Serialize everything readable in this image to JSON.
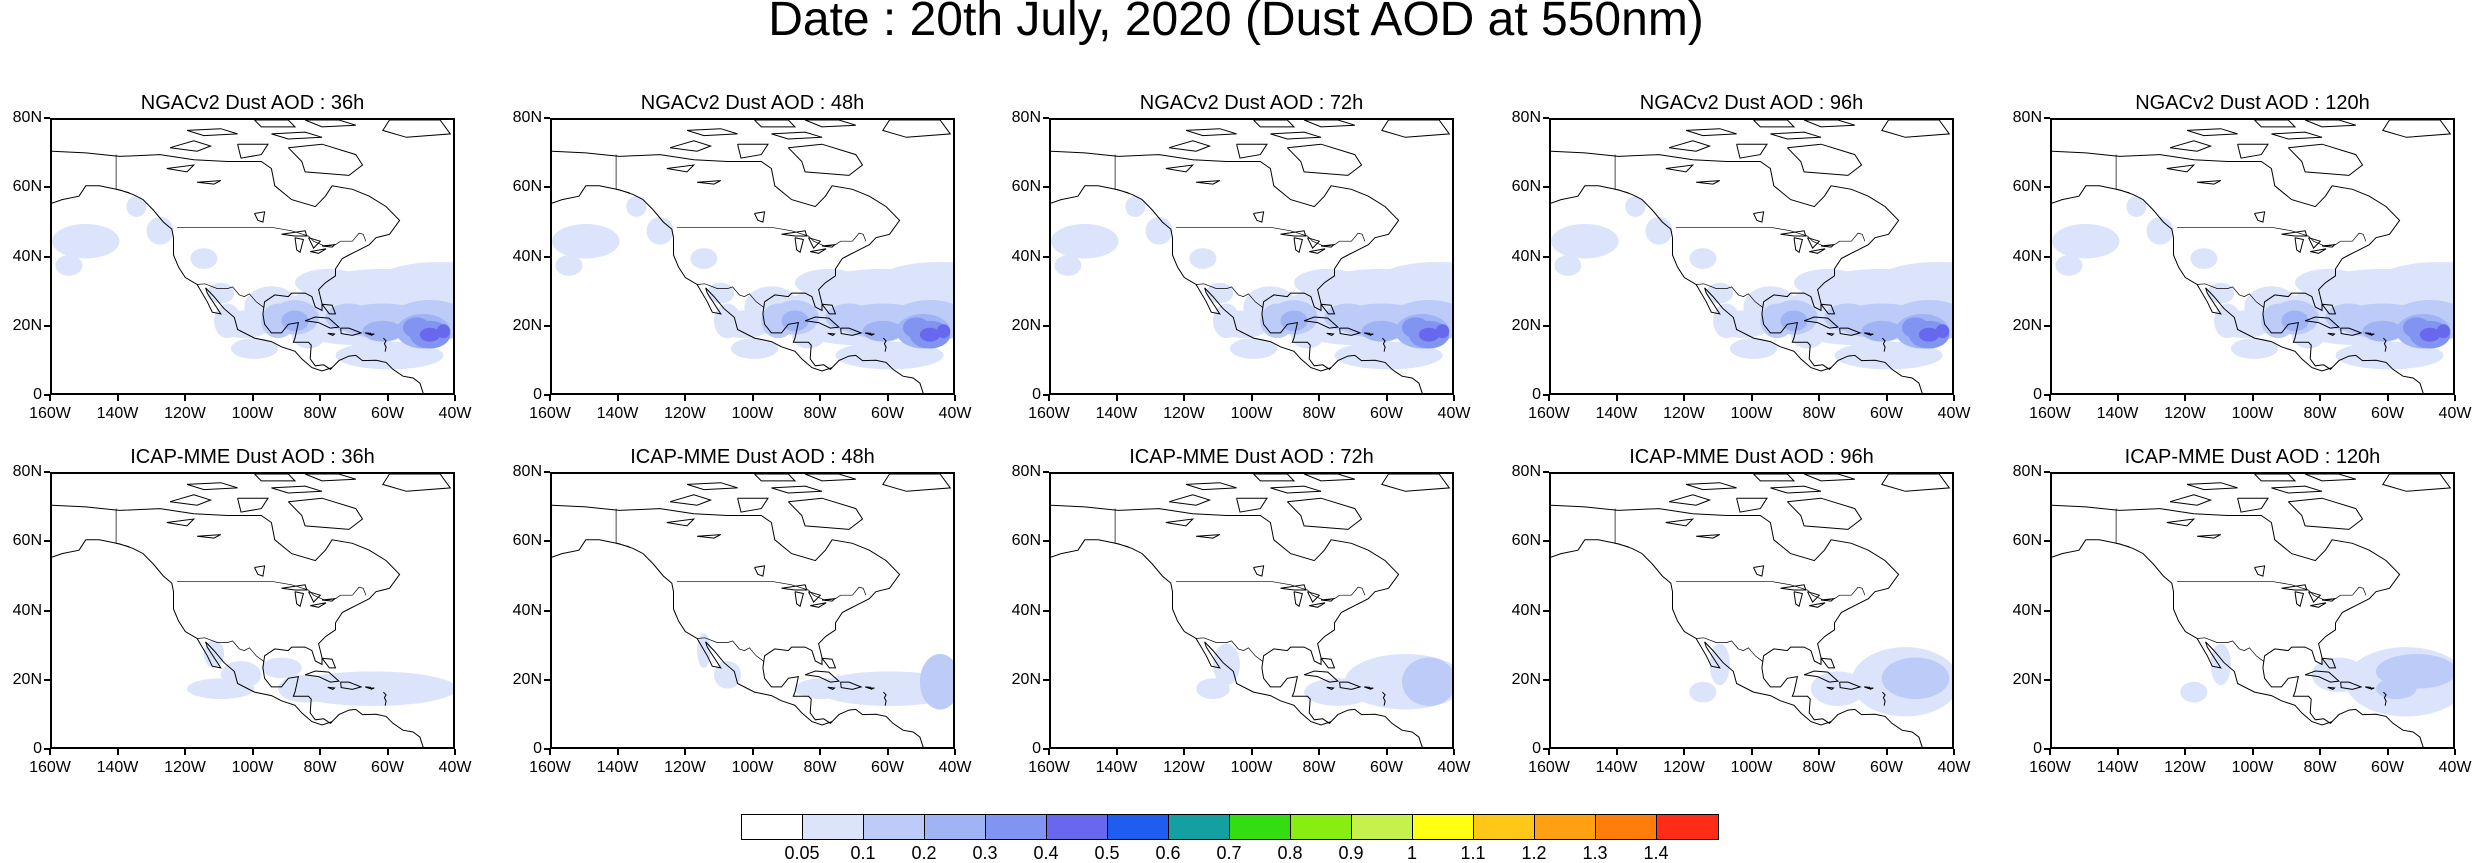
{
  "title": "Date : 20th July, 2020 (Dust AOD at 550nm)",
  "panels": [
    {
      "title": "NGACv2 Dust AOD : 36h",
      "model": "NGAC",
      "intensity": 1.0
    },
    {
      "title": "NGACv2 Dust AOD : 48h",
      "model": "NGAC",
      "intensity": 1.0
    },
    {
      "title": "NGACv2 Dust AOD : 72h",
      "model": "NGAC",
      "intensity": 1.0
    },
    {
      "title": "NGACv2 Dust AOD : 96h",
      "model": "NGAC",
      "intensity": 0.95
    },
    {
      "title": "NGACv2 Dust AOD : 120h",
      "model": "NGAC",
      "intensity": 0.9
    },
    {
      "title": "ICAP-MME Dust AOD : 36h",
      "model": "ICAP",
      "intensity": 1.0
    },
    {
      "title": "ICAP-MME Dust AOD : 48h",
      "model": "ICAP",
      "intensity": 1.0
    },
    {
      "title": "ICAP-MME Dust AOD : 72h",
      "model": "ICAP",
      "intensity": 1.0
    },
    {
      "title": "ICAP-MME Dust AOD : 96h",
      "model": "ICAP",
      "intensity": 1.0
    },
    {
      "title": "ICAP-MME Dust AOD : 120h",
      "model": "ICAP",
      "intensity": 1.0
    }
  ],
  "axes": {
    "lat_labels": [
      "80N",
      "60N",
      "40N",
      "20N",
      "0"
    ],
    "lon_labels": [
      "160W",
      "140W",
      "120W",
      "100W",
      "80W",
      "60W",
      "40W"
    ],
    "lat_range": [
      0,
      80
    ],
    "lon_range": [
      -160,
      -40
    ]
  },
  "colorbar": {
    "labels": [
      "0.05",
      "0.1",
      "0.2",
      "0.3",
      "0.4",
      "0.5",
      "0.6",
      "0.7",
      "0.8",
      "0.9",
      "1",
      "1.1",
      "1.2",
      "1.3",
      "1.4"
    ],
    "colors": [
      "#ffffff",
      "#dbe4fb",
      "#bccbf8",
      "#9fb3f5",
      "#8294f2",
      "#6868ee",
      "#1f5cf0",
      "#14a0a0",
      "#33dd11",
      "#88ee11",
      "#c6f04a",
      "#ffff14",
      "#ffc819",
      "#ff9f12",
      "#ff7d0a",
      "#ff2d17"
    ]
  }
}
